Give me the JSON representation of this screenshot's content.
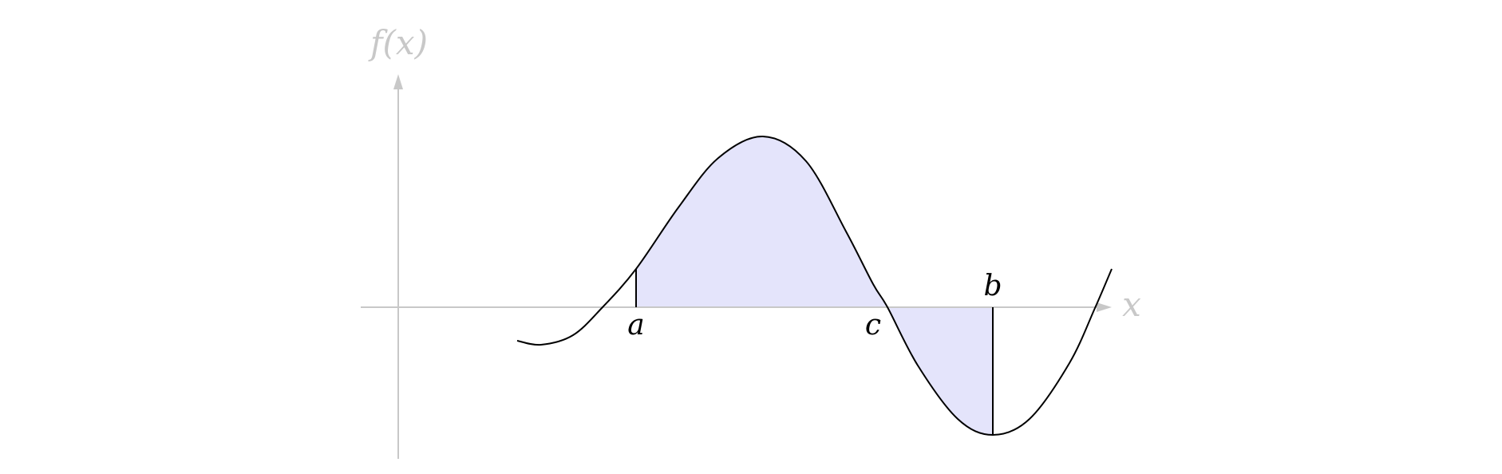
{
  "axes": {
    "y_label": "f(x)",
    "x_label": "x"
  },
  "points": {
    "a": "a",
    "b": "b",
    "c": "c"
  },
  "colors": {
    "axis": "#c8c8c8",
    "curve": "#000000",
    "shade": "#e4e4fb",
    "label": "#000000"
  }
}
